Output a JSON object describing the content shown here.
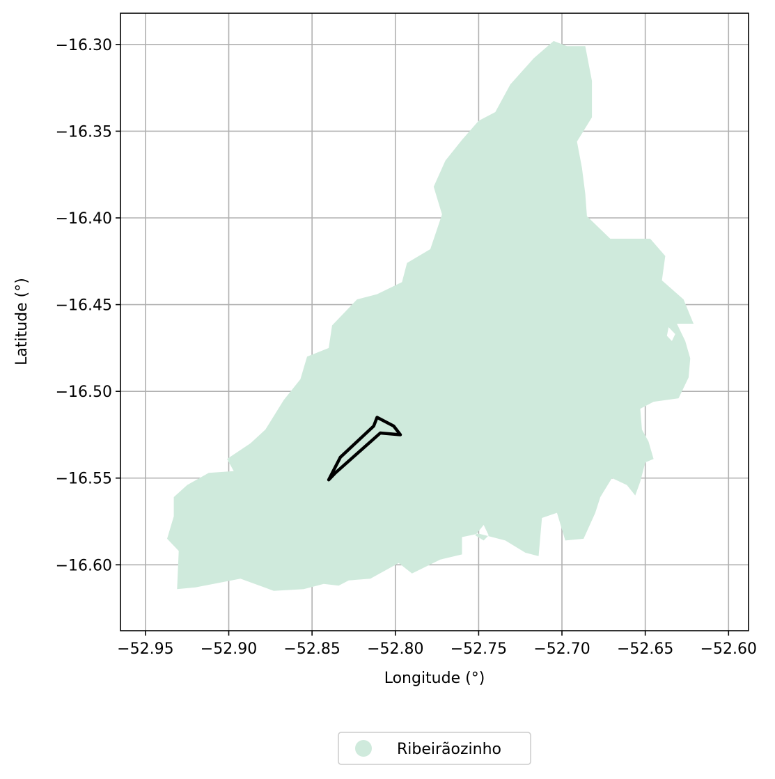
{
  "map": {
    "xlabel": "Longitude (°)",
    "ylabel": "Latitude (°)",
    "x_ticks": [
      "−52.95",
      "−52.90",
      "−52.85",
      "−52.80",
      "−52.75",
      "−52.70",
      "−52.65",
      "−52.60"
    ],
    "y_ticks": [
      "−16.30",
      "−16.35",
      "−16.40",
      "−16.45",
      "−16.50",
      "−16.55",
      "−16.60"
    ],
    "legend": {
      "label": "Ribeirãozinho",
      "position": "bottom-center"
    },
    "colors": {
      "region_fill": "#cfeadc",
      "outline": "#000000",
      "grid": "#b0b0b0"
    }
  },
  "chart_data": {
    "type": "map",
    "xlim": [
      -52.965,
      -52.588
    ],
    "ylim": [
      -16.638,
      -16.282
    ],
    "grid": true,
    "x_tick_values": [
      -52.95,
      -52.9,
      -52.85,
      -52.8,
      -52.75,
      -52.7,
      -52.65,
      -52.6
    ],
    "y_tick_values": [
      -16.3,
      -16.35,
      -16.4,
      -16.45,
      -16.5,
      -16.55,
      -16.6
    ],
    "region": {
      "name": "Ribeirãozinho",
      "polygon": [
        [
          -52.931,
          -16.614
        ],
        [
          -52.93,
          -16.592
        ],
        [
          -52.937,
          -16.585
        ],
        [
          -52.933,
          -16.572
        ],
        [
          -52.933,
          -16.561
        ],
        [
          -52.925,
          -16.554
        ],
        [
          -52.912,
          -16.547
        ],
        [
          -52.897,
          -16.546
        ],
        [
          -52.901,
          -16.539
        ],
        [
          -52.887,
          -16.53
        ],
        [
          -52.878,
          -16.522
        ],
        [
          -52.867,
          -16.505
        ],
        [
          -52.857,
          -16.493
        ],
        [
          -52.853,
          -16.48
        ],
        [
          -52.84,
          -16.475
        ],
        [
          -52.838,
          -16.462
        ],
        [
          -52.823,
          -16.447
        ],
        [
          -52.811,
          -16.444
        ],
        [
          -52.796,
          -16.437
        ],
        [
          -52.793,
          -16.426
        ],
        [
          -52.779,
          -16.418
        ],
        [
          -52.772,
          -16.398
        ],
        [
          -52.777,
          -16.382
        ],
        [
          -52.77,
          -16.367
        ],
        [
          -52.76,
          -16.355
        ],
        [
          -52.75,
          -16.344
        ],
        [
          -52.74,
          -16.339
        ],
        [
          -52.731,
          -16.323
        ],
        [
          -52.717,
          -16.308
        ],
        [
          -52.705,
          -16.298
        ],
        [
          -52.697,
          -16.301
        ],
        [
          -52.686,
          -16.301
        ],
        [
          -52.682,
          -16.321
        ],
        [
          -52.682,
          -16.342
        ],
        [
          -52.691,
          -16.356
        ],
        [
          -52.688,
          -16.371
        ],
        [
          -52.686,
          -16.386
        ],
        [
          -52.685,
          -16.399
        ],
        [
          -52.671,
          -16.412
        ],
        [
          -52.647,
          -16.412
        ],
        [
          -52.638,
          -16.422
        ],
        [
          -52.64,
          -16.436
        ],
        [
          -52.627,
          -16.447
        ],
        [
          -52.621,
          -16.461
        ],
        [
          -52.631,
          -16.461
        ],
        [
          -52.626,
          -16.471
        ],
        [
          -52.623,
          -16.481
        ],
        [
          -52.624,
          -16.492
        ],
        [
          -52.63,
          -16.504
        ],
        [
          -52.645,
          -16.506
        ],
        [
          -52.653,
          -16.51
        ],
        [
          -52.652,
          -16.522
        ],
        [
          -52.648,
          -16.529
        ],
        [
          -52.645,
          -16.539
        ],
        [
          -52.65,
          -16.541
        ],
        [
          -52.653,
          -16.552
        ],
        [
          -52.656,
          -16.56
        ],
        [
          -52.661,
          -16.554
        ],
        [
          -52.67,
          -16.55
        ],
        [
          -52.677,
          -16.561
        ],
        [
          -52.68,
          -16.57
        ],
        [
          -52.687,
          -16.585
        ],
        [
          -52.698,
          -16.586
        ],
        [
          -52.703,
          -16.57
        ],
        [
          -52.712,
          -16.573
        ],
        [
          -52.714,
          -16.595
        ],
        [
          -52.722,
          -16.593
        ],
        [
          -52.734,
          -16.586
        ],
        [
          -52.75,
          -16.582
        ],
        [
          -52.76,
          -16.584
        ],
        [
          -52.76,
          -16.594
        ],
        [
          -52.773,
          -16.597
        ],
        [
          -52.79,
          -16.605
        ],
        [
          -52.798,
          -16.599
        ],
        [
          -52.815,
          -16.608
        ],
        [
          -52.828,
          -16.609
        ],
        [
          -52.834,
          -16.612
        ],
        [
          -52.843,
          -16.611
        ],
        [
          -52.855,
          -16.614
        ],
        [
          -52.873,
          -16.615
        ],
        [
          -52.893,
          -16.608
        ],
        [
          -52.92,
          -16.613
        ]
      ],
      "holes": [
        [
          [
            -52.747,
            -16.577
          ],
          [
            -52.744,
            -16.583
          ],
          [
            -52.747,
            -16.586
          ],
          [
            -52.752,
            -16.583
          ]
        ],
        [
          [
            -52.636,
            -16.463
          ],
          [
            -52.632,
            -16.467
          ],
          [
            -52.634,
            -16.471
          ],
          [
            -52.637,
            -16.468
          ]
        ]
      ]
    },
    "outline": {
      "polygon": [
        [
          -52.84,
          -16.551
        ],
        [
          -52.833,
          -16.538
        ],
        [
          -52.813,
          -16.52
        ],
        [
          -52.811,
          -16.515
        ],
        [
          -52.801,
          -16.52
        ],
        [
          -52.797,
          -16.525
        ],
        [
          -52.809,
          -16.524
        ],
        [
          -52.836,
          -16.547
        ]
      ]
    }
  }
}
